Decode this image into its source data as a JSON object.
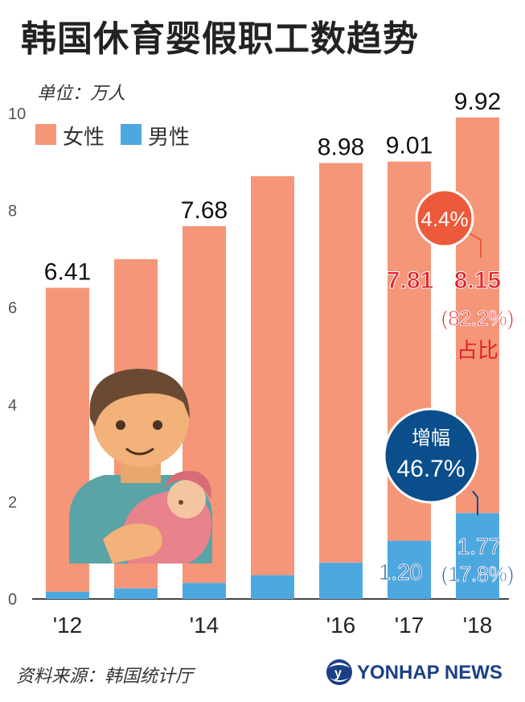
{
  "title": "韩国休育婴假职工数趋势",
  "unit": "单位：万人",
  "legend": {
    "female": "女性",
    "male": "男性"
  },
  "source": "资料来源：韩国统计厅",
  "logo": {
    "text": "YONHAP NEWS"
  },
  "colors": {
    "female": "#f59679",
    "male": "#4ea8e0",
    "red_bubble": "#ec5a3b",
    "red_text": "#e0222b",
    "blue_bubble": "#0b4e8c",
    "blue_text": "#1d5e9e",
    "logo": "#1a3f86"
  },
  "chart_data": {
    "type": "bar",
    "stacked": true,
    "ylim": [
      0,
      10
    ],
    "yticks": [
      0,
      2,
      4,
      6,
      8,
      10
    ],
    "categories": [
      "2012",
      "2013",
      "2014",
      "2015",
      "2016",
      "2017",
      "2018"
    ],
    "xtick_labels": [
      "'12",
      "",
      "'14",
      "",
      "'16",
      "'17",
      "'18"
    ],
    "series": [
      {
        "name": "男性",
        "key": "male",
        "values": [
          0.15,
          0.22,
          0.33,
          0.49,
          0.75,
          1.2,
          1.77
        ]
      },
      {
        "name": "女性",
        "key": "female",
        "values": [
          6.26,
          6.78,
          7.35,
          8.22,
          8.23,
          7.81,
          8.15
        ]
      }
    ],
    "total_labels": [
      "6.41",
      "",
      "7.68",
      "",
      "8.98",
      "9.01",
      "9.92"
    ],
    "annotations": {
      "female_2017": "7.81",
      "female_2018": "8.15",
      "female_2018_share": "(82.2%)",
      "share_label": "占比",
      "female_growth": "4.4%",
      "male_2017": "1.20",
      "male_2018": "1.77",
      "male_2018_share": "(17.8%)",
      "male_growth_label": "增幅",
      "male_growth": "46.7%"
    }
  }
}
